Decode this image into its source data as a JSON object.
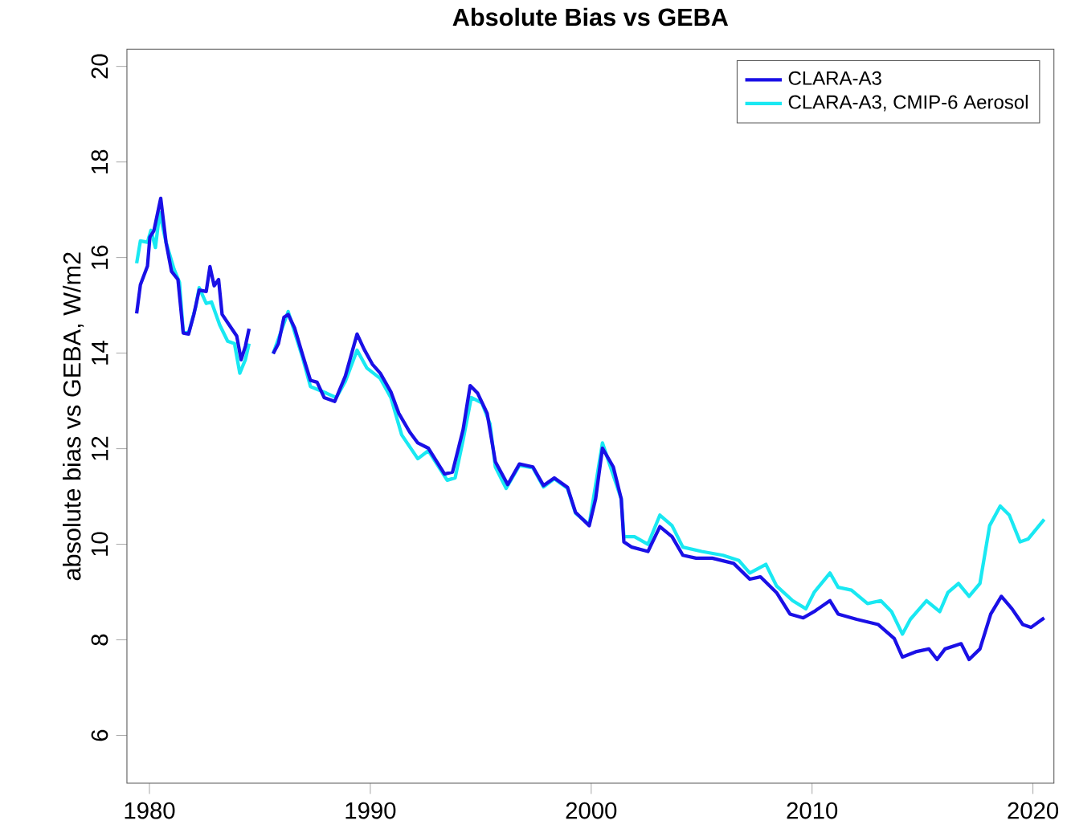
{
  "chart_data": {
    "type": "line",
    "title": "Absolute Bias vs GEBA",
    "ylabel": "absolute bias vs GEBA, W/m2",
    "xlim": [
      1978.98,
      2020.95
    ],
    "ylim": [
      5.0,
      20.36
    ],
    "xticks": [
      1980,
      1990,
      2000,
      2010,
      2020
    ],
    "yticks": [
      6,
      8,
      10,
      12,
      14,
      16,
      18,
      20
    ],
    "legend": "top right",
    "line_style": "solid",
    "series": [
      {
        "name": "CLARA-A3",
        "color": "#1a10e6",
        "x": [
          1979.42,
          1979.59,
          1979.91,
          1980.02,
          1980.2,
          1980.51,
          1980.75,
          1981.0,
          1981.29,
          1981.53,
          1981.77,
          1982.01,
          1982.25,
          1982.57,
          1982.74,
          1982.93,
          1983.13,
          1983.29,
          1983.61,
          1983.95,
          1984.15,
          1984.34,
          1984.51,
          1985.0,
          1985.6,
          1985.84,
          1986.09,
          1986.28,
          1986.57,
          1986.93,
          1987.29,
          1987.59,
          1987.91,
          1988.39,
          1988.87,
          1989.4,
          1989.72,
          1990.09,
          1990.45,
          1990.93,
          1991.29,
          1991.78,
          1992.15,
          1992.63,
          1993.36,
          1993.72,
          1994.2,
          1994.52,
          1994.86,
          1995.29,
          1995.66,
          1996.22,
          1996.75,
          1997.36,
          1997.84,
          1998.33,
          1998.93,
          1999.29,
          1999.91,
          2000.2,
          2000.51,
          2001.0,
          2001.36,
          2001.48,
          2001.84,
          2002.57,
          2003.11,
          2003.66,
          2004.15,
          2004.75,
          2005.48,
          2006.45,
          2007.18,
          2007.66,
          2008.39,
          2009.0,
          2009.6,
          2010.09,
          2010.81,
          2011.18,
          2012.02,
          2013.0,
          2013.72,
          2014.09,
          2014.69,
          2015.29,
          2015.66,
          2016.02,
          2016.75,
          2017.11,
          2017.6,
          2018.09,
          2018.57,
          2019.05,
          2019.54,
          2019.91,
          2020.51
        ],
        "values": [
          14.83,
          15.43,
          15.82,
          16.43,
          16.56,
          17.24,
          16.32,
          15.71,
          15.54,
          14.42,
          14.4,
          14.81,
          15.32,
          15.29,
          15.81,
          15.41,
          15.54,
          14.81,
          14.59,
          14.36,
          13.86,
          14.14,
          14.51,
          null,
          13.99,
          14.2,
          14.75,
          14.81,
          14.53,
          13.97,
          13.43,
          13.39,
          13.07,
          12.99,
          13.52,
          14.4,
          14.08,
          13.77,
          13.58,
          13.19,
          12.74,
          12.35,
          12.12,
          12.01,
          11.47,
          11.51,
          12.4,
          13.32,
          13.16,
          12.74,
          11.73,
          11.25,
          11.68,
          11.62,
          11.23,
          11.39,
          11.19,
          10.67,
          10.39,
          10.95,
          12.01,
          11.62,
          10.95,
          10.05,
          9.94,
          9.85,
          10.37,
          10.16,
          9.77,
          9.71,
          9.71,
          9.6,
          9.27,
          9.32,
          8.99,
          8.54,
          8.46,
          8.59,
          8.82,
          8.54,
          8.43,
          8.32,
          8.03,
          7.64,
          7.75,
          7.81,
          7.59,
          7.81,
          7.92,
          7.59,
          7.81,
          8.54,
          8.91,
          8.65,
          8.32,
          8.26,
          8.46
        ]
      },
      {
        "name": "CLARA-A3, CMIP-6 Aerosol",
        "color": "#19e8f2",
        "x": [
          1979.42,
          1979.59,
          1979.91,
          1980.07,
          1980.27,
          1980.46,
          1980.75,
          1981.11,
          1981.36,
          1981.53,
          1981.77,
          1982.09,
          1982.25,
          1982.57,
          1982.81,
          1983.18,
          1983.54,
          1983.85,
          1984.09,
          1984.34,
          1984.51,
          1985.0,
          1985.6,
          1986.28,
          1986.93,
          1987.29,
          1988.02,
          1988.46,
          1988.87,
          1989.4,
          1989.84,
          1990.45,
          1990.93,
          1991.42,
          1992.15,
          1992.63,
          1993.48,
          1993.84,
          1994.2,
          1994.57,
          1995.05,
          1995.42,
          1995.66,
          1996.15,
          1996.75,
          1997.36,
          1997.84,
          1998.33,
          1998.93,
          1999.29,
          1999.91,
          2000.51,
          2001.36,
          2001.48,
          2001.96,
          2002.57,
          2003.11,
          2003.66,
          2004.15,
          2005.0,
          2005.96,
          2006.69,
          2007.18,
          2007.91,
          2008.39,
          2009.12,
          2009.72,
          2010.09,
          2010.81,
          2011.18,
          2011.78,
          2012.51,
          2013.11,
          2013.6,
          2014.09,
          2014.45,
          2015.18,
          2015.78,
          2016.15,
          2016.63,
          2017.11,
          2017.6,
          2018.04,
          2018.52,
          2018.93,
          2019.42,
          2019.78,
          2020.51
        ],
        "values": [
          15.88,
          16.35,
          16.32,
          16.57,
          16.21,
          16.94,
          16.32,
          15.76,
          15.48,
          14.44,
          14.42,
          14.96,
          15.37,
          15.04,
          15.07,
          14.59,
          14.25,
          14.2,
          13.58,
          13.86,
          14.2,
          null,
          13.99,
          14.87,
          13.91,
          13.3,
          13.16,
          13.07,
          13.41,
          14.06,
          13.69,
          13.47,
          13.07,
          12.29,
          11.79,
          11.96,
          11.34,
          11.39,
          12.18,
          13.07,
          12.96,
          12.52,
          11.62,
          11.17,
          11.65,
          11.6,
          11.2,
          11.37,
          11.17,
          10.65,
          10.41,
          12.12,
          10.95,
          10.16,
          10.16,
          10.0,
          10.61,
          10.39,
          9.94,
          9.85,
          9.77,
          9.66,
          9.4,
          9.58,
          9.13,
          8.82,
          8.65,
          8.99,
          9.4,
          9.1,
          9.04,
          8.76,
          8.82,
          8.59,
          8.12,
          8.43,
          8.82,
          8.59,
          8.99,
          9.18,
          8.91,
          9.18,
          10.39,
          10.8,
          10.61,
          10.05,
          10.11,
          10.52
        ]
      }
    ]
  }
}
